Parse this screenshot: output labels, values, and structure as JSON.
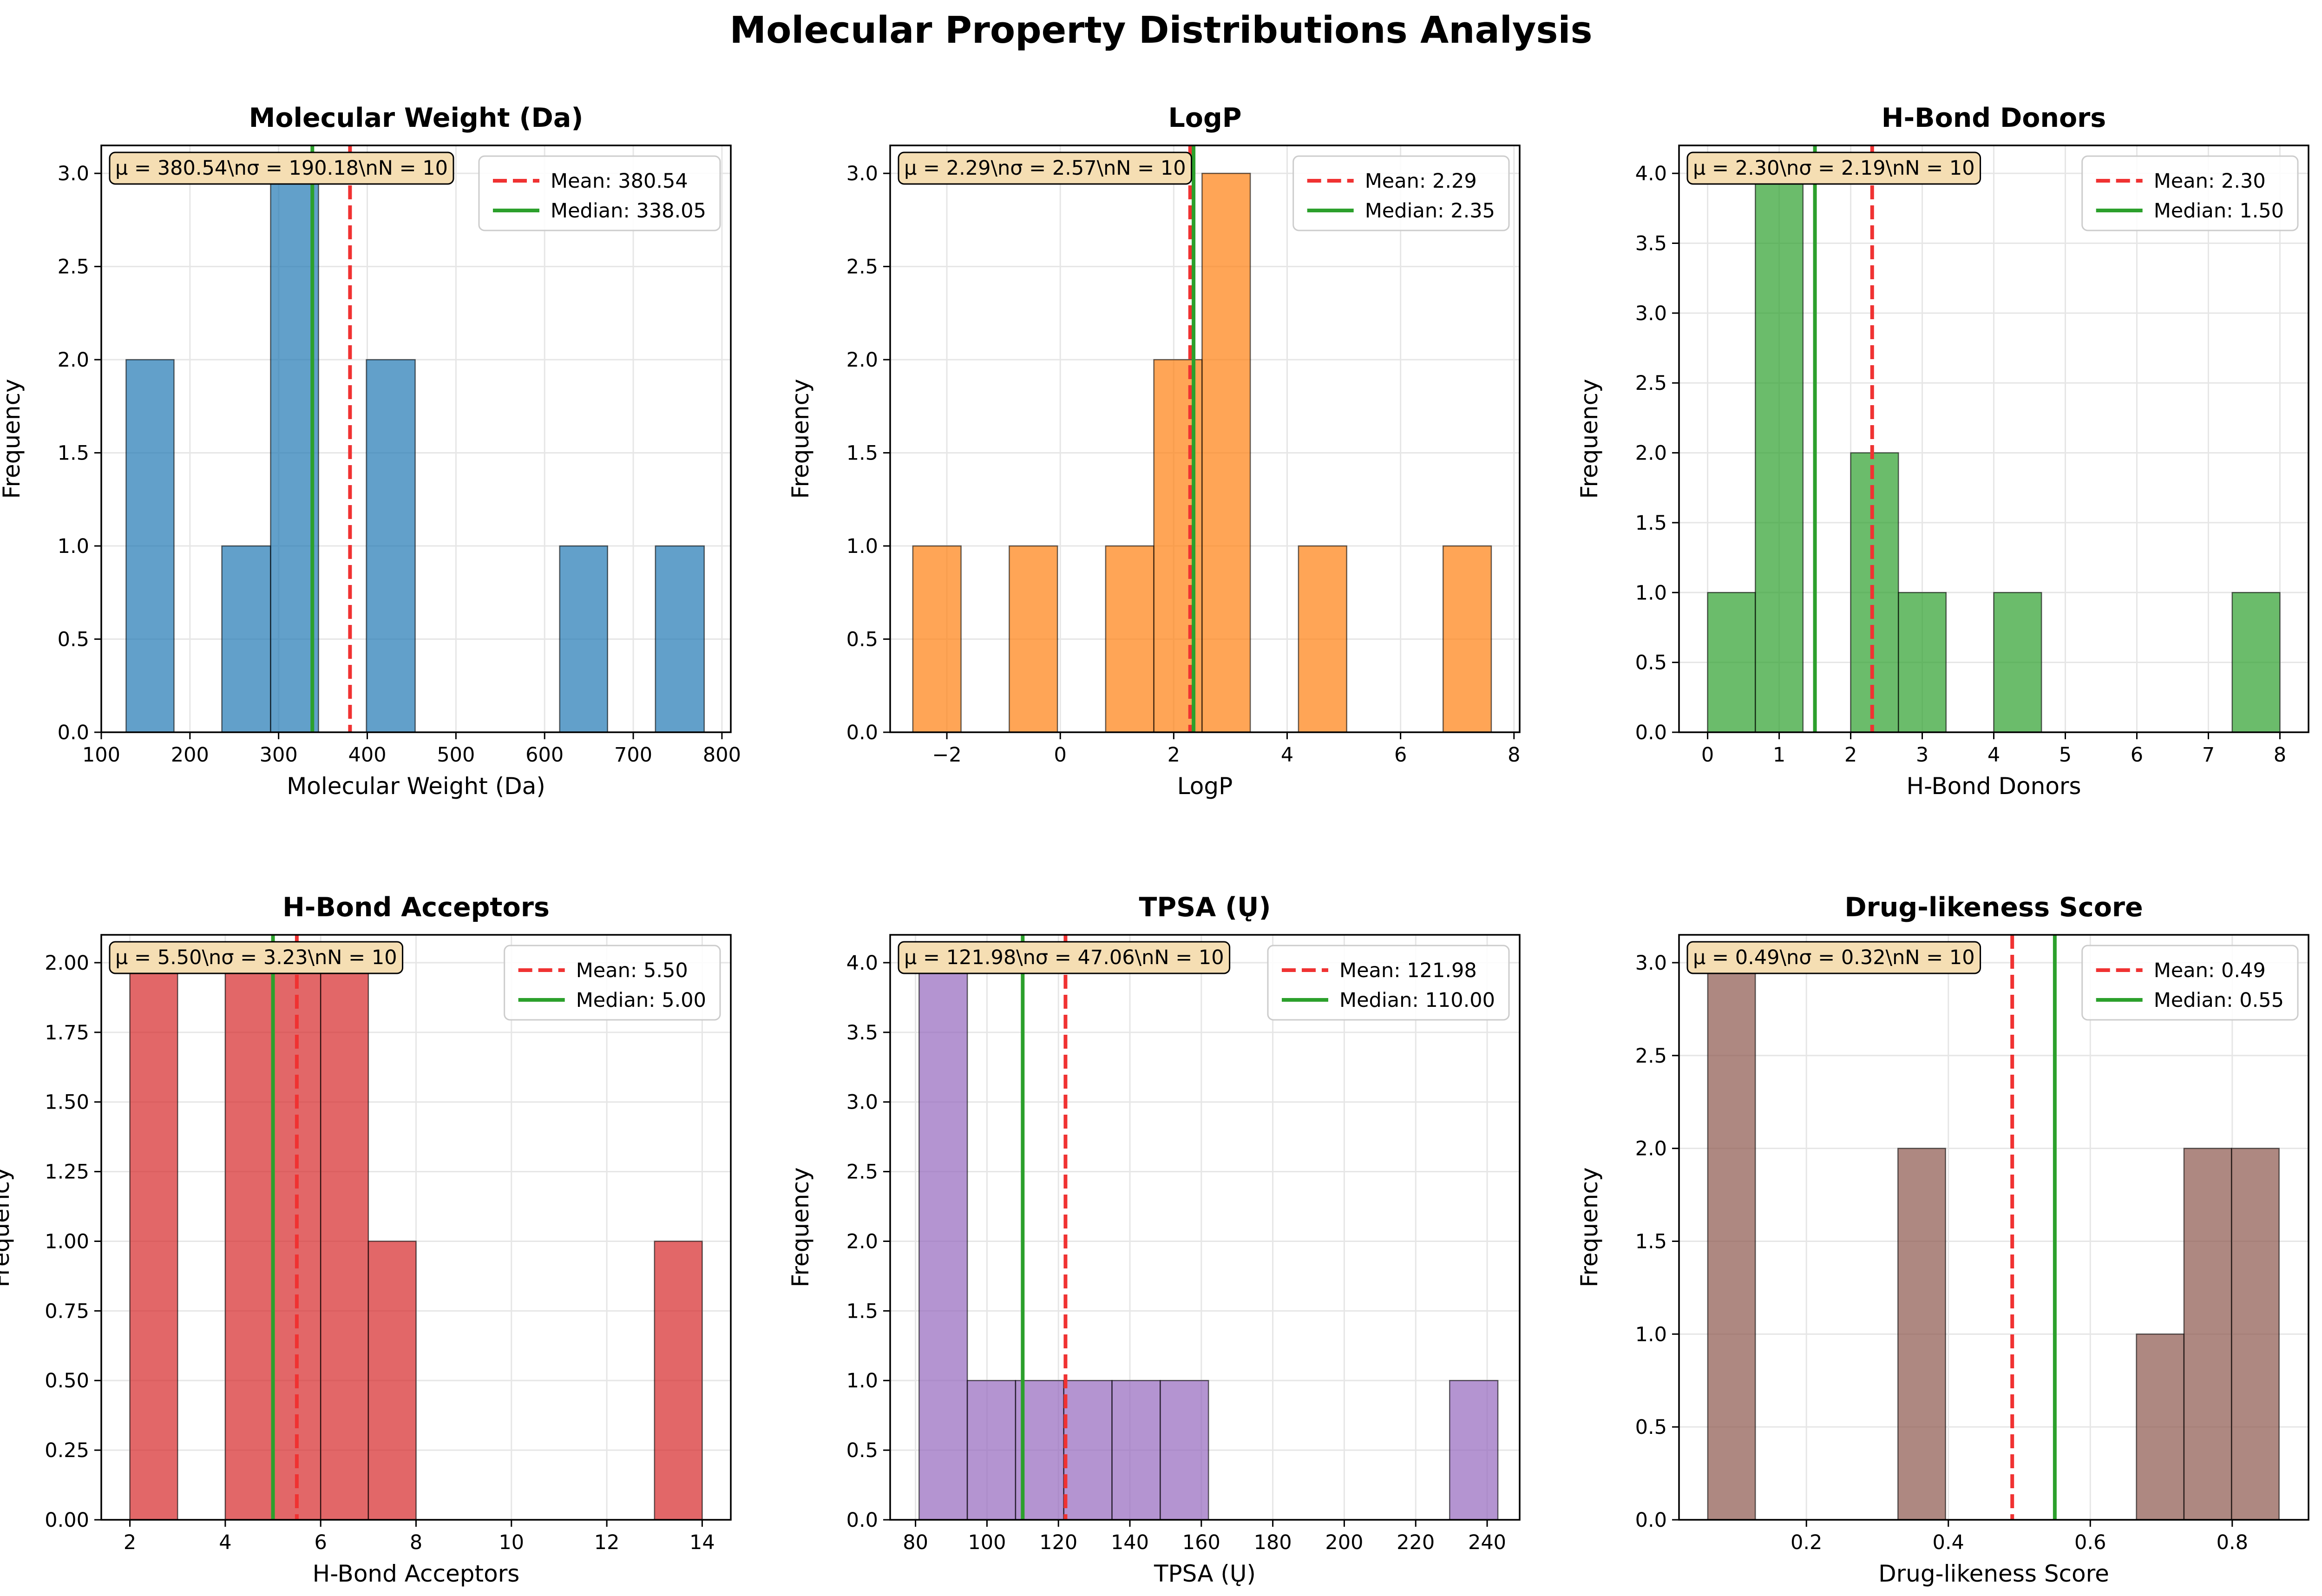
{
  "suptitle": "Molecular Property Distributions Analysis",
  "axis_ylabel": "Frequency",
  "legend_mean_prefix": "Mean: ",
  "legend_median_prefix": "Median: ",
  "colors": {
    "mean_line": "#f03232",
    "median_line": "#2ca02c",
    "stats_box_fill": "#f5deb3"
  },
  "chart_data": [
    {
      "type": "bar",
      "title": "Molecular Weight (Da)",
      "xlabel": "Molecular Weight (Da)",
      "ylabel": "Frequency",
      "color": "#1f77b4",
      "xlim": [
        100,
        810
      ],
      "ylim": [
        0,
        3.15
      ],
      "xticks": [
        100,
        200,
        300,
        400,
        500,
        600,
        700,
        800
      ],
      "xtick_labels": [
        "100",
        "200",
        "300",
        "400",
        "500",
        "600",
        "700",
        "800"
      ],
      "yticks": [
        0,
        0.5,
        1,
        1.5,
        2,
        2.5,
        3
      ],
      "ytick_labels": [
        "0.0",
        "0.5",
        "1.0",
        "1.5",
        "2.0",
        "2.5",
        "3.0"
      ],
      "bin_edges": [
        128,
        182,
        236,
        291,
        345,
        399,
        454,
        508,
        562,
        617,
        671,
        725,
        780
      ],
      "counts": [
        2,
        0,
        1,
        3,
        0,
        2,
        0,
        0,
        0,
        1,
        0,
        1
      ],
      "mean": 380.54,
      "median": 338.05,
      "mean_label": "380.54",
      "median_label": "338.05",
      "stats_text": "μ = 380.54\\nσ = 190.18\\nN = 10"
    },
    {
      "type": "bar",
      "title": "LogP",
      "xlabel": "LogP",
      "ylabel": "Frequency",
      "color": "#ff7f0e",
      "xlim": [
        -3,
        8.1
      ],
      "ylim": [
        0,
        3.15
      ],
      "xticks": [
        -2,
        0,
        2,
        4,
        6,
        8
      ],
      "xtick_labels": [
        "−2",
        "0",
        "2",
        "4",
        "6",
        "8"
      ],
      "yticks": [
        0,
        0.5,
        1,
        1.5,
        2,
        2.5,
        3
      ],
      "ytick_labels": [
        "0.0",
        "0.5",
        "1.0",
        "1.5",
        "2.0",
        "2.5",
        "3.0"
      ],
      "bin_edges": [
        -2.6,
        -1.75,
        -0.9,
        -0.05,
        0.8,
        1.65,
        2.5,
        3.35,
        4.2,
        5.05,
        5.9,
        6.75,
        7.6
      ],
      "counts": [
        1,
        0,
        1,
        0,
        1,
        2,
        3,
        0,
        1,
        0,
        0,
        1
      ],
      "mean": 2.29,
      "median": 2.35,
      "mean_label": "2.29",
      "median_label": "2.35",
      "stats_text": "μ = 2.29\\nσ = 2.57\\nN = 10"
    },
    {
      "type": "bar",
      "title": "H-Bond Donors",
      "xlabel": "H-Bond Donors",
      "ylabel": "Frequency",
      "color": "#2ca02c",
      "xlim": [
        -0.4,
        8.4
      ],
      "ylim": [
        0,
        4.2
      ],
      "xticks": [
        0,
        1,
        2,
        3,
        4,
        5,
        6,
        7,
        8
      ],
      "xtick_labels": [
        "0",
        "1",
        "2",
        "3",
        "4",
        "5",
        "6",
        "7",
        "8"
      ],
      "yticks": [
        0,
        0.5,
        1,
        1.5,
        2,
        2.5,
        3,
        3.5,
        4
      ],
      "ytick_labels": [
        "0.0",
        "0.5",
        "1.0",
        "1.5",
        "2.0",
        "2.5",
        "3.0",
        "3.5",
        "4.0"
      ],
      "bin_edges": [
        0,
        0.667,
        1.333,
        2,
        2.667,
        3.333,
        4,
        4.667,
        5.333,
        6,
        6.667,
        7.333,
        8
      ],
      "counts": [
        1,
        4,
        0,
        2,
        1,
        0,
        1,
        0,
        0,
        0,
        0,
        1
      ],
      "mean": 2.3,
      "median": 1.5,
      "mean_label": "2.30",
      "median_label": "1.50",
      "stats_text": "μ = 2.30\\nσ = 2.19\\nN = 10"
    },
    {
      "type": "bar",
      "title": "H-Bond Acceptors",
      "xlabel": "H-Bond Acceptors",
      "ylabel": "Frequency",
      "color": "#d62728",
      "xlim": [
        1.4,
        14.6
      ],
      "ylim": [
        0,
        2.1
      ],
      "xticks": [
        2,
        4,
        6,
        8,
        10,
        12,
        14
      ],
      "xtick_labels": [
        "2",
        "4",
        "6",
        "8",
        "10",
        "12",
        "14"
      ],
      "yticks": [
        0,
        0.25,
        0.5,
        0.75,
        1,
        1.25,
        1.5,
        1.75,
        2
      ],
      "ytick_labels": [
        "0.00",
        "0.25",
        "0.50",
        "0.75",
        "1.00",
        "1.25",
        "1.50",
        "1.75",
        "2.00"
      ],
      "bin_edges": [
        2,
        3,
        4,
        5,
        6,
        7,
        8,
        9,
        10,
        11,
        12,
        13,
        14
      ],
      "counts": [
        2,
        0,
        2,
        2,
        2,
        1,
        0,
        0,
        0,
        0,
        0,
        1
      ],
      "mean": 5.5,
      "median": 5.0,
      "mean_label": "5.50",
      "median_label": "5.00",
      "stats_text": "μ = 5.50\\nσ = 3.23\\nN = 10"
    },
    {
      "type": "bar",
      "title": "TPSA (Ų)",
      "xlabel": "TPSA (Ų)",
      "ylabel": "Frequency",
      "color": "#9467bd",
      "xlim": [
        72.9,
        249.1
      ],
      "ylim": [
        0,
        4.2
      ],
      "xticks": [
        80,
        100,
        120,
        140,
        160,
        180,
        200,
        220,
        240
      ],
      "xtick_labels": [
        "80",
        "100",
        "120",
        "140",
        "160",
        "180",
        "200",
        "220",
        "240"
      ],
      "yticks": [
        0,
        0.5,
        1,
        1.5,
        2,
        2.5,
        3,
        3.5,
        4
      ],
      "ytick_labels": [
        "0.0",
        "0.5",
        "1.0",
        "1.5",
        "2.0",
        "2.5",
        "3.0",
        "3.5",
        "4.0"
      ],
      "bin_edges": [
        81,
        94.5,
        108,
        121.5,
        135,
        148.5,
        162,
        175.5,
        189,
        202.5,
        216,
        229.5,
        243
      ],
      "counts": [
        4,
        1,
        1,
        1,
        1,
        1,
        0,
        0,
        0,
        0,
        0,
        1
      ],
      "mean": 121.98,
      "median": 110.0,
      "mean_label": "121.98",
      "median_label": "110.00",
      "stats_text": "μ = 121.98\\nσ = 47.06\\nN = 10"
    },
    {
      "type": "bar",
      "title": "Drug-likeness Score",
      "xlabel": "Drug-likeness Score",
      "ylabel": "Frequency",
      "color": "#8c564b",
      "xlim": [
        0.0205,
        0.9075
      ],
      "ylim": [
        0,
        3.15
      ],
      "xticks": [
        0.2,
        0.4,
        0.6,
        0.8
      ],
      "xtick_labels": [
        "0.2",
        "0.4",
        "0.6",
        "0.8"
      ],
      "yticks": [
        0,
        0.5,
        1,
        1.5,
        2,
        2.5,
        3
      ],
      "ytick_labels": [
        "0.0",
        "0.5",
        "1.0",
        "1.5",
        "2.0",
        "2.5",
        "3.0"
      ],
      "bin_edges": [
        0.061,
        0.128,
        0.195,
        0.262,
        0.329,
        0.396,
        0.464,
        0.531,
        0.598,
        0.665,
        0.732,
        0.799,
        0.866
      ],
      "counts": [
        3,
        0,
        0,
        0,
        2,
        0,
        0,
        0,
        0,
        1,
        2,
        2
      ],
      "mean": 0.49,
      "median": 0.55,
      "mean_label": "0.49",
      "median_label": "0.55",
      "stats_text": "μ = 0.49\\nσ = 0.32\\nN = 10"
    }
  ]
}
